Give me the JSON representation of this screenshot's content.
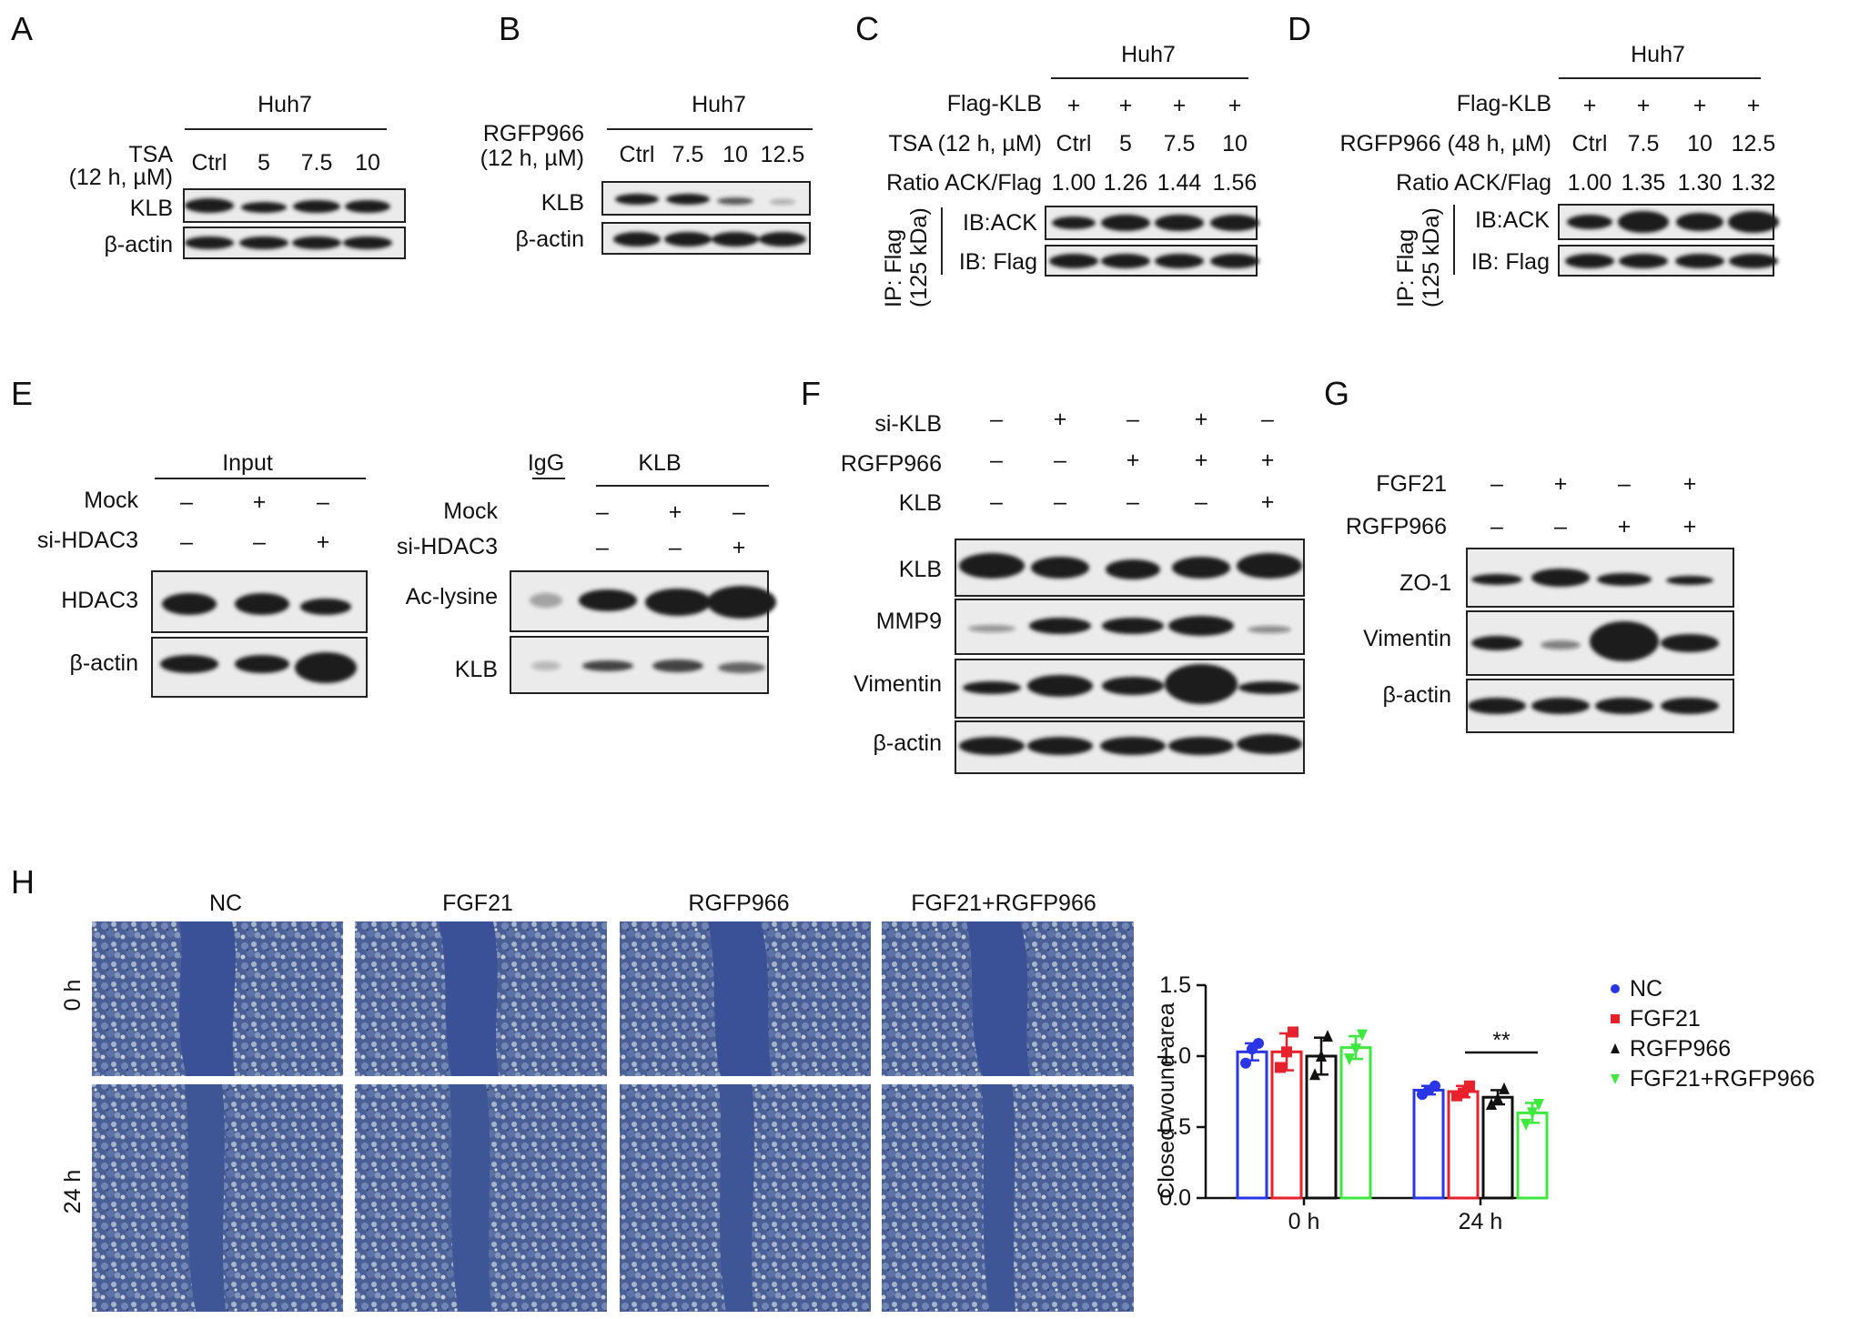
{
  "panels": {
    "A": {
      "letter": "A",
      "cell": "Huh7",
      "row1_label": "TSA",
      "row1_sub": "(12 h, µM)",
      "lanes": [
        "Ctrl",
        "5",
        "7.5",
        "10"
      ],
      "blots": [
        "KLB",
        "β-actin"
      ]
    },
    "B": {
      "letter": "B",
      "cell": "Huh7",
      "row1_label": "RGFP966",
      "row1_sub": "(12 h, µM)",
      "lanes": [
        "Ctrl",
        "7.5",
        "10",
        "12.5"
      ],
      "blots": [
        "KLB",
        "β-actin"
      ]
    },
    "C": {
      "letter": "C",
      "cell": "Huh7",
      "flag_label": "Flag-KLB",
      "flag_signs": [
        "+",
        "+",
        "+",
        "+"
      ],
      "treat_label": "TSA (12 h, µM)",
      "lanes": [
        "Ctrl",
        "5",
        "7.5",
        "10"
      ],
      "ratio_label": "Ratio ACK/Flag",
      "ratios": [
        "1.00",
        "1.26",
        "1.44",
        "1.56"
      ],
      "ip_label": "IP: Flag",
      "ip_sub": "(125 kDa)",
      "blots": [
        "IB:ACK",
        "IB: Flag"
      ]
    },
    "D": {
      "letter": "D",
      "cell": "Huh7",
      "flag_label": "Flag-KLB",
      "flag_signs": [
        "+",
        "+",
        "+",
        "+"
      ],
      "treat_label": "RGFP966 (48 h, µM)",
      "lanes": [
        "Ctrl",
        "7.5",
        "10",
        "12.5"
      ],
      "ratio_label": "Ratio ACK/Flag",
      "ratios": [
        "1.00",
        "1.35",
        "1.30",
        "1.32"
      ],
      "ip_label": "IP: Flag",
      "ip_sub": "(125 kDa)",
      "blots": [
        "IB:ACK",
        "IB: Flag"
      ]
    },
    "E": {
      "letter": "E",
      "input_label": "Input",
      "rows": [
        {
          "label": "Mock",
          "signs": [
            "–",
            "+",
            "–"
          ]
        },
        {
          "label": "si-HDAC3",
          "signs": [
            "–",
            "–",
            "+"
          ]
        }
      ],
      "blots_left": [
        "HDAC3",
        "β-actin"
      ],
      "igg_label": "IgG",
      "klb_label": "KLB",
      "blots_right": [
        "Ac-lysine",
        "KLB"
      ]
    },
    "F": {
      "letter": "F",
      "rows": [
        {
          "label": "si-KLB",
          "signs": [
            "–",
            "+",
            "–",
            "+",
            "–"
          ]
        },
        {
          "label": "RGFP966",
          "signs": [
            "–",
            "–",
            "+",
            "+",
            "+"
          ]
        },
        {
          "label": "KLB",
          "signs": [
            "–",
            "–",
            "–",
            "–",
            "+"
          ]
        }
      ],
      "blots": [
        "KLB",
        "MMP9",
        "Vimentin",
        "β-actin"
      ]
    },
    "G": {
      "letter": "G",
      "rows": [
        {
          "label": "FGF21",
          "signs": [
            "–",
            "+",
            "–",
            "+"
          ]
        },
        {
          "label": "RGFP966",
          "signs": [
            "–",
            "–",
            "+",
            "+"
          ]
        }
      ],
      "blots": [
        "ZO-1",
        "Vimentin",
        "β-actin"
      ]
    },
    "H": {
      "letter": "H",
      "columns": [
        "NC",
        "FGF21",
        "RGFP966",
        "FGF21+RGFP966"
      ],
      "rows": [
        "0 h",
        "24 h"
      ]
    }
  },
  "colors": {
    "NC": "#2a35e6",
    "FGF21": "#e8222d",
    "RGFP966": "#111111",
    "FGF21+RGFP966": "#3ee83e"
  },
  "chart_data": {
    "type": "bar",
    "ylabel": "Closed wound area",
    "ylim": [
      0,
      1.5
    ],
    "yticks": [
      "0.0",
      "0.5",
      "1.0",
      "1.5"
    ],
    "categories": [
      "0 h",
      "24 h"
    ],
    "series": [
      {
        "name": "NC",
        "values": [
          1.03,
          0.76
        ],
        "err": [
          0.06,
          0.03
        ],
        "points": [
          [
            0.95,
            1.05,
            1.09
          ],
          [
            0.73,
            0.76,
            0.79
          ]
        ],
        "marker": "circle"
      },
      {
        "name": "FGF21",
        "values": [
          1.03,
          0.75
        ],
        "err": [
          0.13,
          0.04
        ],
        "points": [
          [
            0.92,
            1.03,
            1.17
          ],
          [
            0.72,
            0.74,
            0.79
          ]
        ],
        "marker": "square"
      },
      {
        "name": "RGFP966",
        "values": [
          1.0,
          0.71
        ],
        "err": [
          0.13,
          0.05
        ],
        "points": [
          [
            0.87,
            1.0,
            1.14
          ],
          [
            0.66,
            0.7,
            0.77
          ]
        ],
        "marker": "triangle-up"
      },
      {
        "name": "FGF21+RGFP966",
        "values": [
          1.06,
          0.6
        ],
        "err": [
          0.08,
          0.07
        ],
        "points": [
          [
            0.98,
            1.05,
            1.15
          ],
          [
            0.52,
            0.6,
            0.66
          ]
        ],
        "marker": "triangle-down"
      }
    ],
    "annotation": "**",
    "legend_position": "right"
  }
}
